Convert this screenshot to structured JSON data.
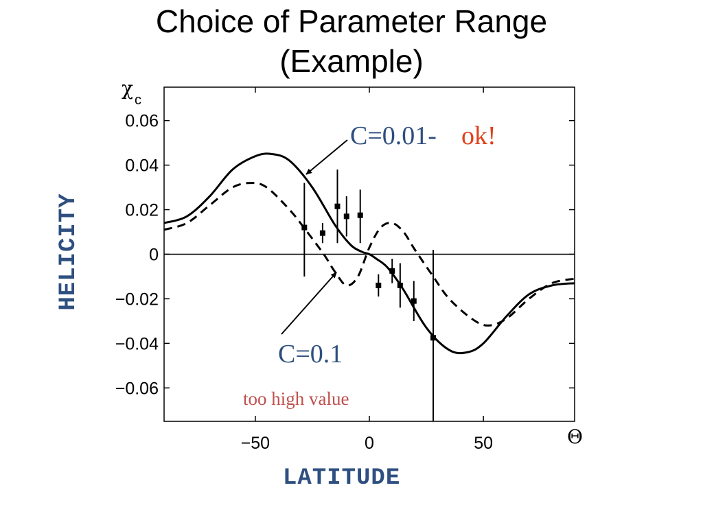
{
  "slide": {
    "title_line1": "Choice of Parameter Range",
    "title_line2": "(Example)",
    "side_label": "HELICITY",
    "bottom_label": "LATITUDE"
  },
  "chart_data": {
    "type": "line",
    "xlim": [
      -90,
      90
    ],
    "ylim": [
      -0.075,
      0.075
    ],
    "x_ticks": [
      -50,
      0,
      50
    ],
    "y_ticks": [
      0.06,
      0.04,
      0.02,
      0,
      -0.02,
      -0.04,
      -0.06
    ],
    "x_tick_labels": [
      "−50",
      "0",
      "50"
    ],
    "y_tick_labels": [
      "0.06",
      "0.04",
      "0.02",
      "0",
      "−0.02",
      "−0.04",
      "−0.06"
    ],
    "xlabel": "Θ",
    "ylabel_symbol": "χ",
    "ylabel_subscript": "c",
    "grid": false,
    "zero_line": true,
    "series": [
      {
        "style": "solid",
        "color": "#000000",
        "x": [
          -90,
          -80,
          -70,
          -60,
          -50,
          -43,
          -35,
          -25,
          -15,
          -8,
          -3,
          0,
          3,
          8,
          15,
          25,
          35,
          43,
          50,
          60,
          70,
          80,
          90
        ],
        "y": [
          0.014,
          0.017,
          0.026,
          0.038,
          0.044,
          0.045,
          0.042,
          0.03,
          0.013,
          0.004,
          0.001,
          0.0,
          -0.002,
          -0.006,
          -0.016,
          -0.033,
          -0.043,
          -0.044,
          -0.04,
          -0.028,
          -0.018,
          -0.014,
          -0.013
        ]
      },
      {
        "style": "dashed",
        "color": "#000000",
        "x": [
          -90,
          -80,
          -70,
          -60,
          -52,
          -45,
          -35,
          -28,
          -20,
          -15,
          -10,
          -5,
          0,
          5,
          10,
          15,
          20,
          28,
          35,
          45,
          52,
          60,
          70,
          80,
          90
        ],
        "y": [
          0.011,
          0.014,
          0.022,
          0.03,
          0.032,
          0.03,
          0.02,
          0.011,
          0.0,
          -0.008,
          -0.014,
          -0.01,
          0.003,
          0.012,
          0.014,
          0.01,
          0.002,
          -0.01,
          -0.02,
          -0.029,
          -0.032,
          -0.029,
          -0.02,
          -0.013,
          -0.011
        ]
      }
    ],
    "points": [
      {
        "x": -28.5,
        "y": 0.012,
        "err_low": -0.01,
        "err_high": 0.032
      },
      {
        "x": -20.5,
        "y": 0.0095,
        "err_low": 0.005,
        "err_high": 0.014
      },
      {
        "x": -14,
        "y": 0.0215,
        "err_low": 0.005,
        "err_high": 0.038
      },
      {
        "x": -10,
        "y": 0.017,
        "err_low": 0.008,
        "err_high": 0.026
      },
      {
        "x": -4,
        "y": 0.0175,
        "err_low": 0.005,
        "err_high": 0.029
      },
      {
        "x": 4,
        "y": -0.014,
        "err_low": -0.019,
        "err_high": -0.009
      },
      {
        "x": 10,
        "y": -0.0075,
        "err_low": -0.013,
        "err_high": -0.002
      },
      {
        "x": 13.5,
        "y": -0.014,
        "err_low": -0.024,
        "err_high": -0.004
      },
      {
        "x": 19.5,
        "y": -0.021,
        "err_low": -0.03,
        "err_high": -0.012
      },
      {
        "x": 28,
        "y": -0.0375,
        "err_low": -0.075,
        "err_high": 0.002
      }
    ],
    "annotations": [
      {
        "text": "C=0.01-",
        "color": "#2e4f7f"
      },
      {
        "text": "ok!",
        "color": "#e0401a"
      },
      {
        "text": "C=0.1",
        "color": "#2e4f7f"
      },
      {
        "text": "too high value",
        "color": "#c0504d"
      }
    ]
  }
}
